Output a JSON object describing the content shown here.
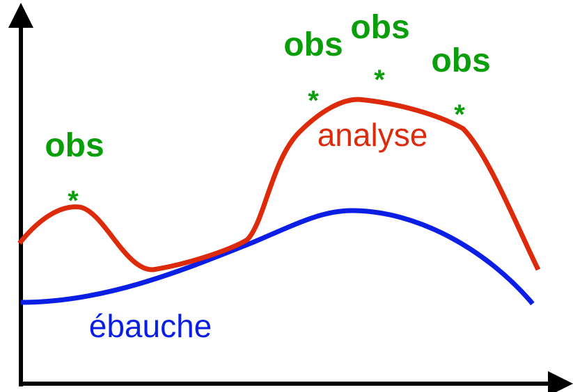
{
  "observations": [
    {
      "label": "obs",
      "marker": "*"
    },
    {
      "label": "obs",
      "marker": "*"
    },
    {
      "label": "obs",
      "marker": "*"
    },
    {
      "label": "obs",
      "marker": "*"
    }
  ],
  "analysis_label": "analyse",
  "background_label": "ébauche"
}
